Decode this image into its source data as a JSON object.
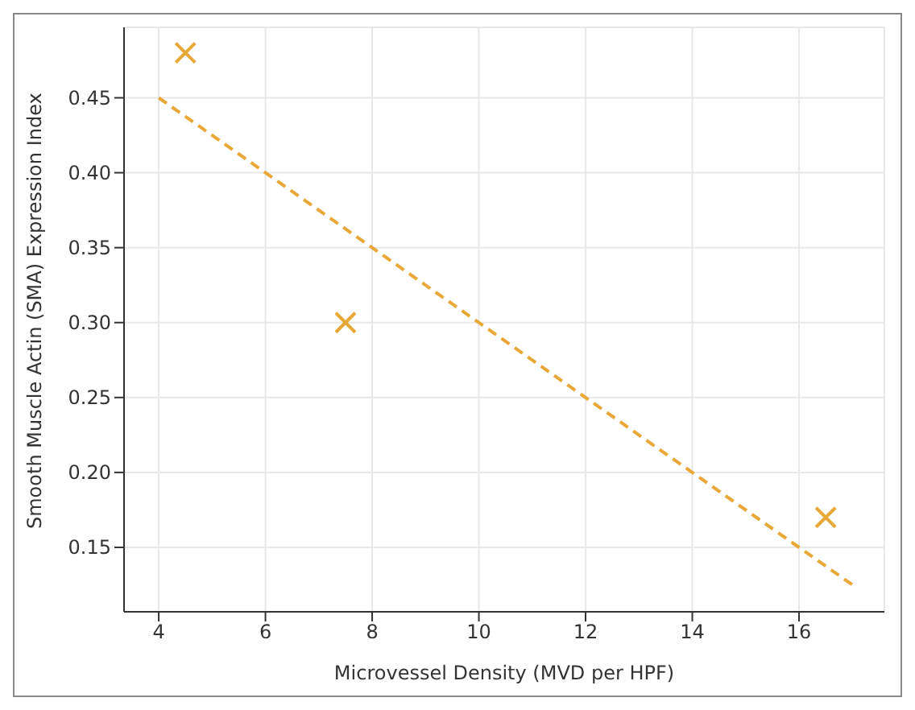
{
  "chart_data": {
    "type": "scatter",
    "xlabel": "Microvessel Density (MVD per HPF)",
    "ylabel": "Smooth Muscle Actin (SMA) Expression Index",
    "xlim": [
      3.35,
      17.6
    ],
    "ylim": [
      0.107,
      0.497
    ],
    "xticks": [
      4,
      6,
      8,
      10,
      12,
      14,
      16
    ],
    "yticks": [
      0.15,
      {
        "value": 0.2,
        "label": "0.20"
      },
      0.25,
      {
        "value": 0.3,
        "label": "0.30"
      },
      0.35,
      {
        "value": 0.4,
        "label": "0.40"
      },
      0.45
    ],
    "grid": true,
    "marker": "cross",
    "series": [
      {
        "x": [
          4.5,
          7.5,
          16.5
        ],
        "values": [
          0.48,
          0.3,
          0.17
        ],
        "color": "#e8a838"
      },
      {
        "type": "line",
        "x": [
          4,
          17
        ],
        "values": [
          0.45,
          0.125
        ],
        "color": "#e8a838",
        "line_style": "dashed",
        "marker": "none"
      }
    ]
  }
}
